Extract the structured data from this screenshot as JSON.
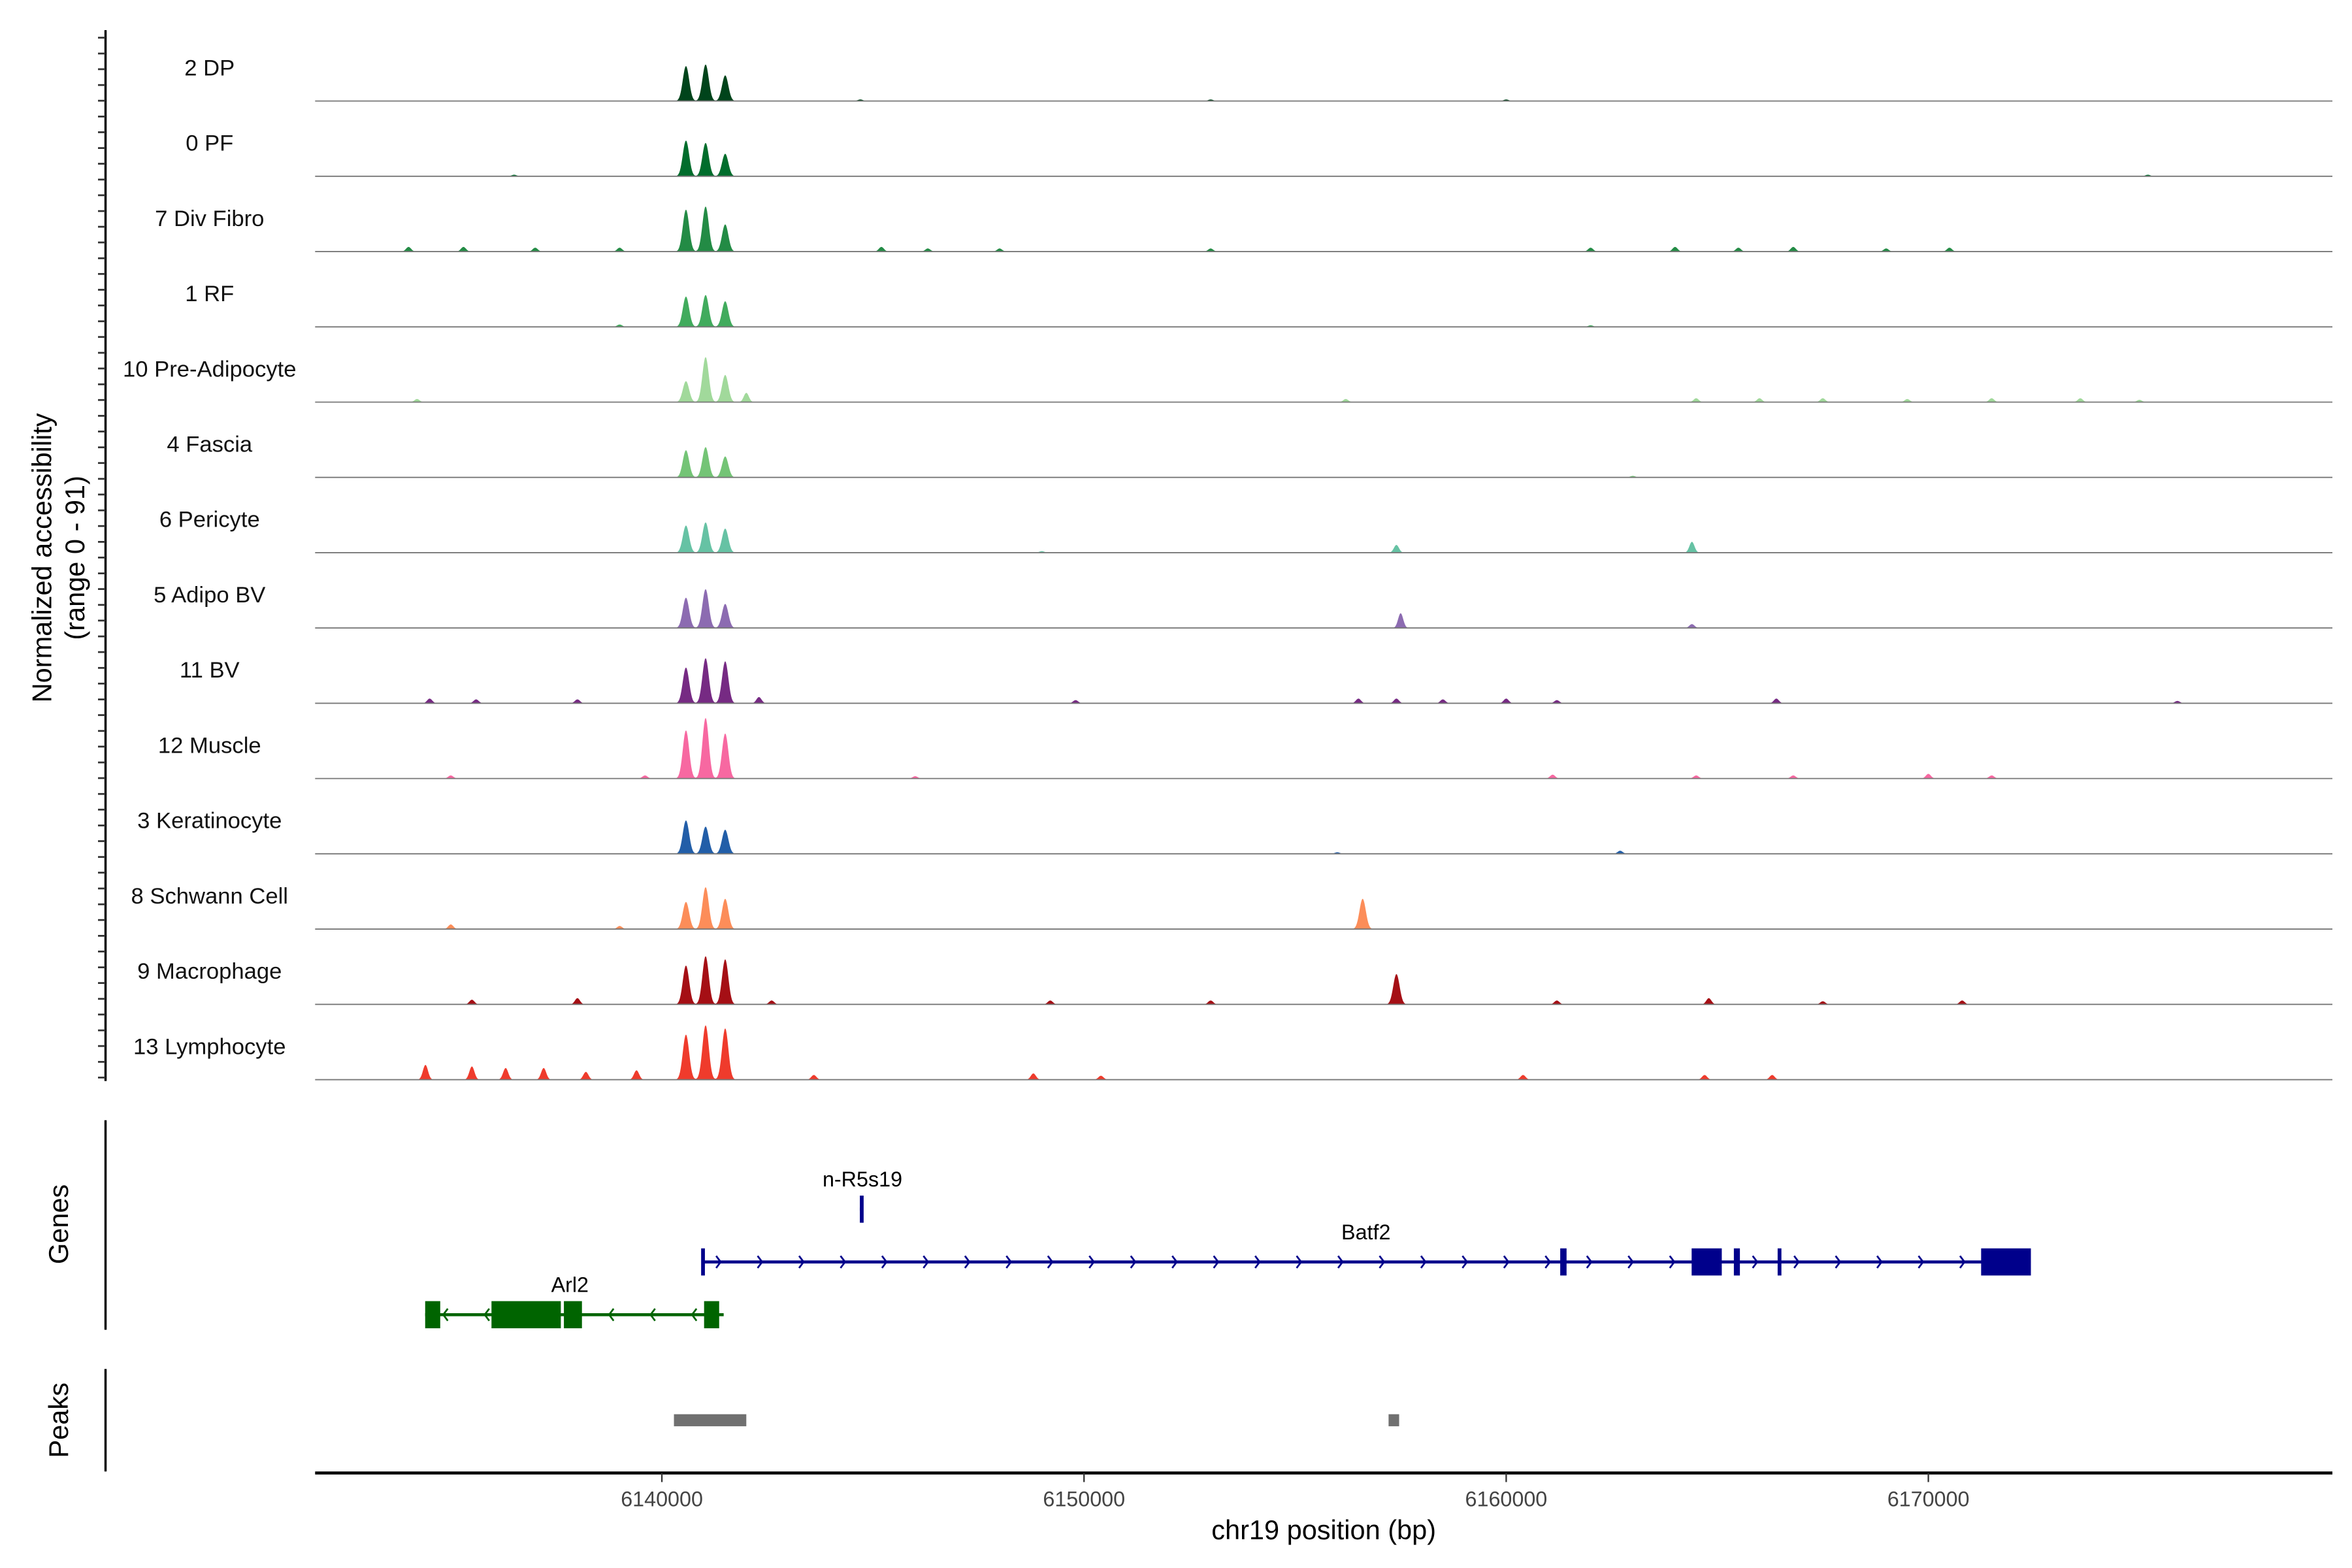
{
  "chart_data": {
    "type": "area",
    "title": "",
    "xlabel": "chr19 position (bp)",
    "ylabel": "Normalized accessibility",
    "ylabel_range": "(range 0 - 91)",
    "ylim": [
      0,
      91
    ],
    "xlim": [
      6131786,
      6179571
    ],
    "x_ticks": [
      6140000,
      6150000,
      6160000,
      6170000
    ],
    "x_tick_labels": [
      "6140000",
      "6150000",
      "6160000",
      "6170000"
    ],
    "grid": false,
    "tracks": [
      {
        "name": "2 DP",
        "color": "#00441b",
        "peaks": [
          [
            6140571,
            45
          ],
          [
            6141036,
            47
          ],
          [
            6141500,
            33
          ],
          [
            6144700,
            2
          ],
          [
            6160000,
            2
          ],
          [
            6153000,
            2
          ]
        ]
      },
      {
        "name": "0 PF",
        "color": "#006d2c",
        "peaks": [
          [
            6140571,
            46
          ],
          [
            6141036,
            43
          ],
          [
            6141500,
            29
          ],
          [
            6136500,
            2
          ],
          [
            6175200,
            2
          ]
        ]
      },
      {
        "name": "7 Div Fibro",
        "color": "#238b45",
        "peaks": [
          [
            6140571,
            54
          ],
          [
            6141036,
            58
          ],
          [
            6141500,
            35
          ],
          [
            6134000,
            6
          ],
          [
            6135300,
            6
          ],
          [
            6137000,
            5
          ],
          [
            6139000,
            5
          ],
          [
            6145200,
            6
          ],
          [
            6146300,
            4
          ],
          [
            6148000,
            4
          ],
          [
            6153000,
            4
          ],
          [
            6162000,
            5
          ],
          [
            6164000,
            6
          ],
          [
            6165500,
            5
          ],
          [
            6166800,
            6
          ],
          [
            6169000,
            4
          ],
          [
            6170500,
            5
          ]
        ]
      },
      {
        "name": "1 RF",
        "color": "#41ab5d",
        "peaks": [
          [
            6140571,
            39
          ],
          [
            6141036,
            41
          ],
          [
            6141500,
            33
          ],
          [
            6139000,
            3
          ],
          [
            6162000,
            2
          ]
        ]
      },
      {
        "name": "10 Pre-Adipocyte",
        "color": "#a1d99b",
        "peaks": [
          [
            6140571,
            27
          ],
          [
            6141036,
            58
          ],
          [
            6141500,
            35
          ],
          [
            6142000,
            12
          ],
          [
            6134200,
            4
          ],
          [
            6156200,
            4
          ],
          [
            6164500,
            5
          ],
          [
            6166000,
            5
          ],
          [
            6167500,
            5
          ],
          [
            6169500,
            4
          ],
          [
            6171500,
            5
          ],
          [
            6173600,
            5
          ],
          [
            6175000,
            3
          ]
        ]
      },
      {
        "name": "4 Fascia",
        "color": "#74c476",
        "peaks": [
          [
            6140571,
            35
          ],
          [
            6141036,
            39
          ],
          [
            6141500,
            27
          ],
          [
            6163000,
            2
          ]
        ]
      },
      {
        "name": "6 Pericyte",
        "color": "#66c2a4",
        "peaks": [
          [
            6140571,
            35
          ],
          [
            6141036,
            39
          ],
          [
            6141500,
            31
          ],
          [
            6157400,
            10
          ],
          [
            6164400,
            14
          ],
          [
            6149000,
            2
          ]
        ]
      },
      {
        "name": "5 Adipo BV",
        "color": "#8c6bb1",
        "peaks": [
          [
            6140571,
            39
          ],
          [
            6141036,
            50
          ],
          [
            6141500,
            31
          ],
          [
            6157500,
            19
          ],
          [
            6164400,
            5
          ]
        ]
      },
      {
        "name": "11 BV",
        "color": "#762a83",
        "peaks": [
          [
            6140571,
            46
          ],
          [
            6141036,
            58
          ],
          [
            6141500,
            54
          ],
          [
            6142300,
            8
          ],
          [
            6134500,
            6
          ],
          [
            6135600,
            5
          ],
          [
            6138000,
            5
          ],
          [
            6149800,
            4
          ],
          [
            6156500,
            6
          ],
          [
            6157400,
            6
          ],
          [
            6158500,
            5
          ],
          [
            6160000,
            6
          ],
          [
            6161200,
            4
          ],
          [
            6166400,
            6
          ],
          [
            6175900,
            3
          ]
        ]
      },
      {
        "name": "12 Muscle",
        "color": "#f768a1",
        "peaks": [
          [
            6140571,
            62
          ],
          [
            6141036,
            78
          ],
          [
            6141500,
            58
          ],
          [
            6135000,
            4
          ],
          [
            6139600,
            4
          ],
          [
            6146000,
            3
          ],
          [
            6161100,
            5
          ],
          [
            6164500,
            4
          ],
          [
            6166800,
            4
          ],
          [
            6170000,
            6
          ],
          [
            6171500,
            4
          ]
        ]
      },
      {
        "name": "3 Keratinocyte",
        "color": "#225ea8",
        "peaks": [
          [
            6140571,
            43
          ],
          [
            6141036,
            35
          ],
          [
            6141500,
            31
          ],
          [
            6162700,
            4
          ],
          [
            6156000,
            2
          ]
        ]
      },
      {
        "name": "8 Schwann Cell",
        "color": "#fc8d59",
        "peaks": [
          [
            6140571,
            35
          ],
          [
            6141036,
            54
          ],
          [
            6141500,
            39
          ],
          [
            6156600,
            39
          ],
          [
            6135000,
            6
          ],
          [
            6139000,
            4
          ]
        ]
      },
      {
        "name": "9 Macrophage",
        "color": "#a50f15",
        "peaks": [
          [
            6140571,
            50
          ],
          [
            6141036,
            62
          ],
          [
            6141500,
            58
          ],
          [
            6157400,
            39
          ],
          [
            6135500,
            6
          ],
          [
            6138000,
            8
          ],
          [
            6142600,
            5
          ],
          [
            6149200,
            5
          ],
          [
            6153000,
            5
          ],
          [
            6161200,
            5
          ],
          [
            6164800,
            8
          ],
          [
            6167500,
            4
          ],
          [
            6170800,
            5
          ]
        ]
      },
      {
        "name": "13 Lymphocyte",
        "color": "#ef3b2c",
        "peaks": [
          [
            6140571,
            58
          ],
          [
            6141036,
            70
          ],
          [
            6141500,
            66
          ],
          [
            6134400,
            19
          ],
          [
            6135500,
            17
          ],
          [
            6136300,
            15
          ],
          [
            6137200,
            15
          ],
          [
            6138200,
            10
          ],
          [
            6139400,
            12
          ],
          [
            6143600,
            6
          ],
          [
            6148800,
            8
          ],
          [
            6150400,
            5
          ],
          [
            6160400,
            6
          ],
          [
            6164700,
            6
          ],
          [
            6166300,
            6
          ]
        ]
      }
    ],
    "genes": [
      {
        "name": "n-R5s19",
        "strand": "+",
        "color": "#00008b",
        "start": 6144690,
        "end": 6144740,
        "exons": [
          [
            6144690,
            6144740
          ]
        ]
      },
      {
        "name": "Batf2",
        "strand": "+",
        "color": "#00008b",
        "start": 6140964,
        "end": 6172429,
        "exons": [
          [
            6140930,
            6141000
          ],
          [
            6161280,
            6161430
          ],
          [
            6164393,
            6165107
          ],
          [
            6165393,
            6165536
          ],
          [
            6166430,
            6166500
          ],
          [
            6171250,
            6172429
          ]
        ]
      },
      {
        "name": "Arl2",
        "strand": "-",
        "color": "#006400",
        "start": 6134393,
        "end": 6141464,
        "exons": [
          [
            6134393,
            6134750
          ],
          [
            6135964,
            6137607
          ],
          [
            6137679,
            6138107
          ],
          [
            6141000,
            6141357
          ]
        ]
      }
    ],
    "peaks": [
      [
        6140286,
        6142000
      ],
      [
        6157214,
        6157464
      ]
    ],
    "panel_labels": {
      "genes": "Genes",
      "peaks": "Peaks"
    }
  }
}
